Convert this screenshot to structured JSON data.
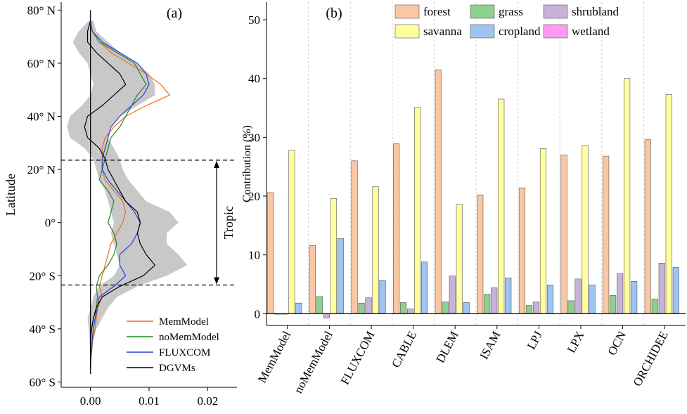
{
  "chart_data": [
    {
      "panel_label": "(a)",
      "type": "line",
      "xlabel": "",
      "ylabel": "Latitude",
      "xlim": [
        -0.005,
        0.025
      ],
      "ylim": [
        -62,
        83
      ],
      "x_ticks": [
        0.0,
        0.01,
        0.02
      ],
      "x_tick_labels": [
        "0.00",
        "0.01",
        "0.02"
      ],
      "y_ticks": [
        80,
        60,
        40,
        20,
        0,
        -20,
        -40,
        -60
      ],
      "y_tick_labels": [
        "80° N",
        "60° N",
        "40° N",
        "20° N",
        "0°",
        "20° S",
        "40° S",
        "60° S"
      ],
      "tropic": {
        "label": "Tropic",
        "lat_top": 23.5,
        "lat_bottom": -23.5
      },
      "legend": {
        "placement": "bottom-right",
        "entries": [
          "MemModel",
          "noMemModel",
          "FLUXCOM",
          "DGVMs"
        ]
      },
      "colors": {
        "MemModel": "#f26b1d",
        "noMemModel": "#1e8c1e",
        "FLUXCOM": "#2f3fd6",
        "DGVMs": "#000000",
        "band": "#c8c8c8"
      },
      "lat": [
        76,
        72,
        68,
        64,
        60,
        56,
        52,
        48,
        44,
        40,
        36,
        32,
        28,
        24,
        20,
        16,
        12,
        8,
        4,
        0,
        -4,
        -8,
        -12,
        -16,
        -20,
        -24,
        -28,
        -32,
        -36,
        -40,
        -44,
        -48,
        -52,
        -55
      ],
      "series": [
        {
          "name": "MemModel",
          "values": [
            0.0,
            0.0003,
            0.0015,
            0.0035,
            0.0065,
            0.0095,
            0.012,
            0.0135,
            0.0095,
            0.006,
            0.004,
            0.0025,
            0.002,
            0.002,
            0.002,
            0.0025,
            0.004,
            0.0055,
            0.006,
            0.0055,
            0.0045,
            0.0035,
            0.003,
            0.0025,
            0.002,
            0.0015,
            0.002,
            0.0012,
            0.001,
            0.0008,
            0.0004,
            0.0002,
            0.0,
            0.0
          ]
        },
        {
          "name": "noMemModel",
          "values": [
            0.0,
            0.0003,
            0.0015,
            0.0045,
            0.0075,
            0.0085,
            0.0095,
            0.008,
            0.007,
            0.006,
            0.005,
            0.0035,
            0.003,
            0.0025,
            0.002,
            0.0015,
            0.003,
            0.004,
            0.0035,
            0.003,
            0.004,
            0.0045,
            0.004,
            0.003,
            0.0015,
            0.001,
            0.0012,
            0.001,
            0.0008,
            0.0005,
            0.0003,
            0.0002,
            0.0,
            0.0
          ]
        },
        {
          "name": "FLUXCOM",
          "values": [
            0.0,
            0.0003,
            0.002,
            0.005,
            0.008,
            0.0095,
            0.01,
            0.009,
            0.007,
            0.005,
            0.0035,
            0.003,
            0.0025,
            0.002,
            0.002,
            0.003,
            0.0045,
            0.006,
            0.0075,
            0.0085,
            0.008,
            0.007,
            0.005,
            0.005,
            0.006,
            0.004,
            0.0015,
            0.0012,
            0.0008,
            0.0005,
            0.0003,
            0.0002,
            0.0,
            0.0
          ]
        },
        {
          "name": "DGVMs",
          "values": [
            0.0,
            -0.0005,
            -0.0005,
            0.001,
            0.003,
            0.005,
            0.006,
            0.004,
            0.002,
            -0.0005,
            -0.001,
            -0.0005,
            0.0015,
            0.0025,
            0.003,
            0.004,
            0.005,
            0.006,
            0.008,
            0.0085,
            0.008,
            0.0085,
            0.0095,
            0.011,
            0.009,
            0.005,
            0.002,
            0.001,
            0.0005,
            0.0002,
            0.0,
            0.0,
            0.0,
            0.0
          ]
        }
      ],
      "band_low": [
        -0.0003,
        -0.002,
        -0.003,
        -0.002,
        -0.0005,
        0.0,
        0.0005,
        0.0,
        -0.0015,
        -0.0035,
        -0.004,
        -0.0035,
        -0.001,
        0.0005,
        0.001,
        0.0015,
        0.0025,
        0.003,
        0.0035,
        0.004,
        0.0035,
        0.004,
        0.0045,
        0.005,
        0.004,
        0.0015,
        0.0005,
        0.0,
        -0.0005,
        -0.0003,
        -0.0002,
        -0.0001,
        -0.0001,
        0.0
      ],
      "band_high": [
        0.0005,
        0.001,
        0.003,
        0.005,
        0.008,
        0.01,
        0.011,
        0.011,
        0.008,
        0.005,
        0.0035,
        0.003,
        0.004,
        0.005,
        0.0055,
        0.0065,
        0.008,
        0.0095,
        0.0135,
        0.015,
        0.013,
        0.013,
        0.015,
        0.0165,
        0.013,
        0.008,
        0.0045,
        0.003,
        0.002,
        0.001,
        0.0005,
        0.0003,
        0.0002,
        0.0001
      ]
    },
    {
      "panel_label": "(b)",
      "type": "bar",
      "ylabel": "Contribution (%)",
      "ylim": [
        -2,
        53
      ],
      "y_ticks": [
        0,
        10,
        20,
        30,
        40,
        50
      ],
      "grid": "vertical dashed separators",
      "legend": {
        "placement": "top-right",
        "entries": [
          "forest",
          "grass",
          "shrubland",
          "savanna",
          "cropland",
          "wetland"
        ]
      },
      "categories": [
        "MemModel",
        "noMemModel",
        "FLUXCOM",
        "CABLE",
        "DLEM",
        "ISAM",
        "LPJ",
        "LPX",
        "OCN",
        "ORCHIDEE"
      ],
      "series": [
        {
          "name": "forest",
          "color": "#f9c7a2",
          "values": [
            20.6,
            11.6,
            26.0,
            28.9,
            41.5,
            20.2,
            21.4,
            27.0,
            26.8,
            29.6
          ]
        },
        {
          "name": "grass",
          "color": "#8fcf8f",
          "values": [
            0.0,
            2.9,
            1.8,
            1.9,
            2.0,
            3.3,
            1.4,
            2.2,
            3.1,
            2.5
          ]
        },
        {
          "name": "shrubland",
          "color": "#c7b2d8",
          "values": [
            -0.1,
            -0.7,
            2.7,
            0.8,
            6.4,
            4.4,
            2.0,
            5.9,
            6.8,
            8.6
          ]
        },
        {
          "name": "savanna",
          "color": "#ffff9e",
          "values": [
            27.8,
            19.6,
            21.6,
            35.1,
            18.6,
            36.5,
            28.1,
            28.6,
            40.0,
            37.3
          ]
        },
        {
          "name": "cropland",
          "color": "#9fc4f0",
          "values": [
            1.8,
            12.8,
            5.7,
            8.8,
            1.9,
            6.1,
            4.9,
            4.9,
            5.5,
            7.9
          ]
        },
        {
          "name": "wetland",
          "color": "#ff9af2",
          "values": [
            0,
            0,
            0,
            0,
            0,
            0,
            0,
            0,
            0,
            0
          ]
        }
      ]
    }
  ]
}
